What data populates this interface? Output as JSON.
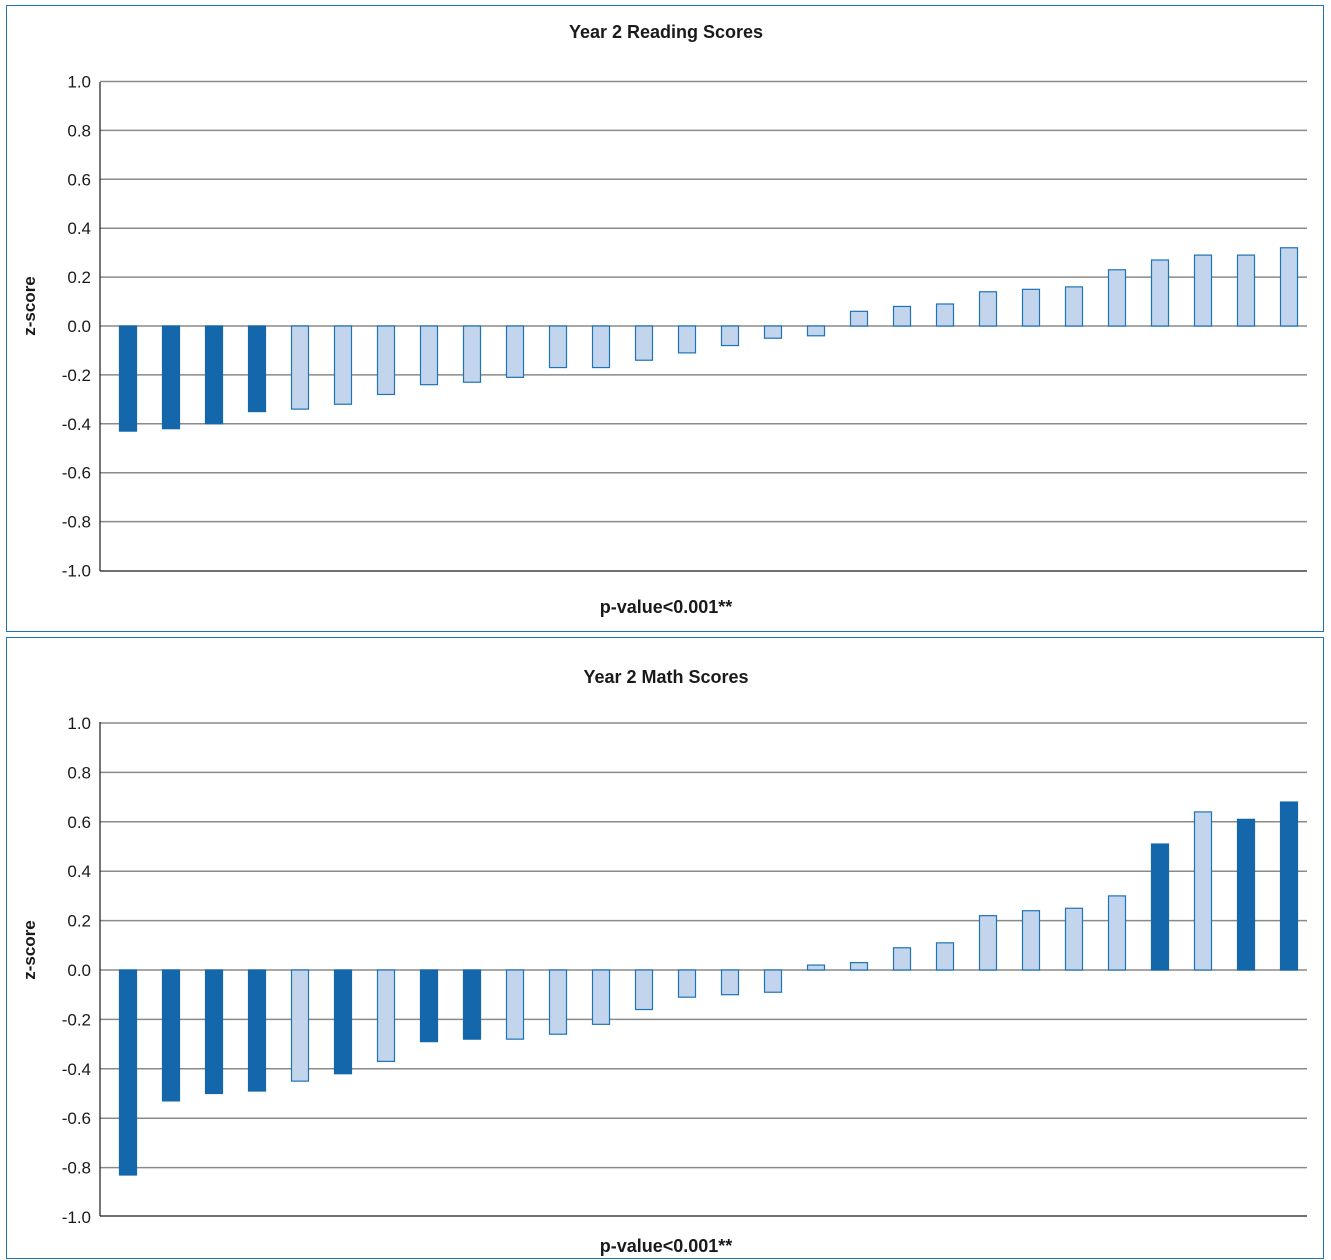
{
  "colors": {
    "significant": "#1467ab",
    "non_significant_fill": "#c2d5ec",
    "non_significant_stroke": "#1e73b5",
    "frame": "#1e73b5"
  },
  "chart_data": [
    {
      "type": "bar",
      "title": "Year 2 Reading Scores",
      "xlabel": "p-value<0.001**",
      "ylabel": "z-score",
      "ylim": [
        -1.0,
        1.0
      ],
      "yticks": [
        "1.0",
        "0.8",
        "0.6",
        "0.4",
        "0.2",
        "0.0",
        "-0.2",
        "-0.4",
        "-0.6",
        "-0.8",
        "-1.0"
      ],
      "grid": true,
      "values": [
        -0.43,
        -0.42,
        -0.4,
        -0.35,
        -0.34,
        -0.32,
        -0.28,
        -0.24,
        -0.23,
        -0.21,
        -0.17,
        -0.17,
        -0.14,
        -0.11,
        -0.08,
        -0.05,
        -0.04,
        0.06,
        0.08,
        0.09,
        0.14,
        0.15,
        0.16,
        0.23,
        0.27,
        0.29,
        0.29,
        0.32
      ],
      "significant": [
        true,
        true,
        true,
        true,
        false,
        false,
        false,
        false,
        false,
        false,
        false,
        false,
        false,
        false,
        false,
        false,
        false,
        false,
        false,
        false,
        false,
        false,
        false,
        false,
        false,
        false,
        false,
        false
      ]
    },
    {
      "type": "bar",
      "title": "Year 2 Math Scores",
      "xlabel": "p-value<0.001**",
      "ylabel": "z-score",
      "ylim": [
        -1.0,
        1.0
      ],
      "yticks": [
        "1.0",
        "0.8",
        "0.6",
        "0.4",
        "0.2",
        "0.0",
        "-0.2",
        "-0.4",
        "-0.6",
        "-0.8",
        "-1.0"
      ],
      "grid": true,
      "values": [
        -0.83,
        -0.53,
        -0.5,
        -0.49,
        -0.45,
        -0.42,
        -0.37,
        -0.29,
        -0.28,
        -0.28,
        -0.26,
        -0.22,
        -0.16,
        -0.11,
        -0.1,
        -0.09,
        0.02,
        0.03,
        0.09,
        0.11,
        0.22,
        0.24,
        0.25,
        0.3,
        0.51,
        0.64,
        0.61,
        0.68
      ],
      "significant": [
        true,
        true,
        true,
        true,
        false,
        true,
        false,
        true,
        true,
        false,
        false,
        false,
        false,
        false,
        false,
        false,
        false,
        false,
        false,
        false,
        false,
        false,
        false,
        false,
        true,
        false,
        true,
        true
      ]
    }
  ]
}
